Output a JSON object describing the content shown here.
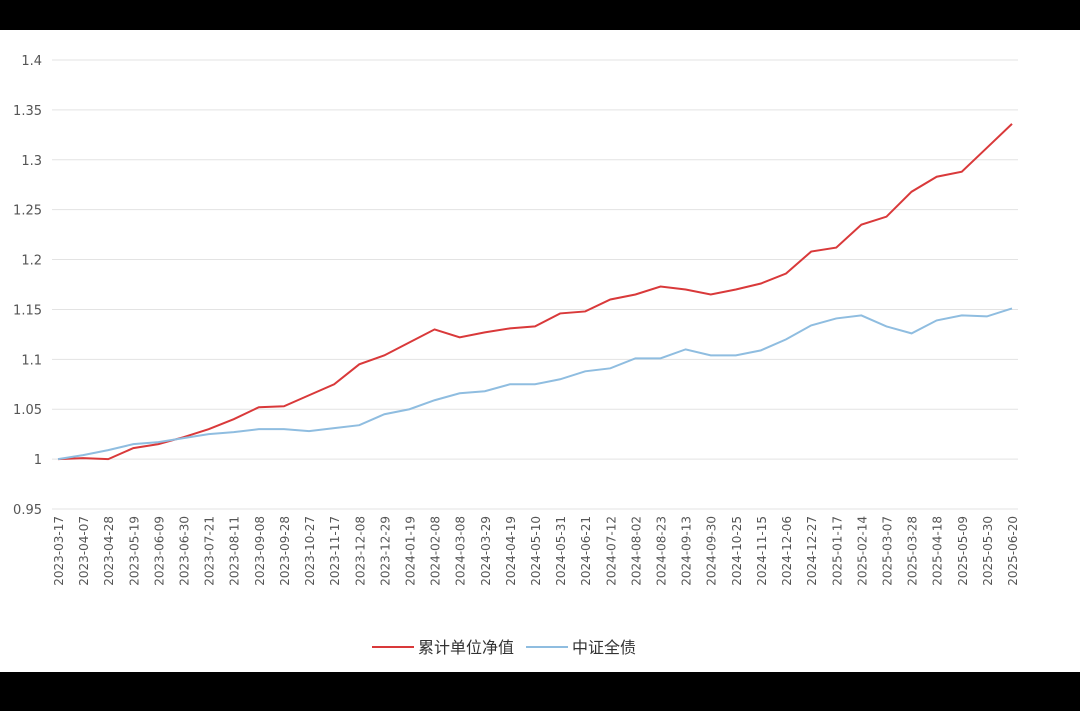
{
  "chart_data": {
    "type": "line",
    "categories": [
      "2023-03-17",
      "2023-04-07",
      "2023-04-28",
      "2023-05-19",
      "2023-06-09",
      "2023-06-30",
      "2023-07-21",
      "2023-08-11",
      "2023-09-08",
      "2023-09-28",
      "2023-10-27",
      "2023-11-17",
      "2023-12-08",
      "2023-12-29",
      "2024-01-19",
      "2024-02-08",
      "2024-03-08",
      "2024-03-29",
      "2024-04-19",
      "2024-05-10",
      "2024-05-31",
      "2024-06-21",
      "2024-07-12",
      "2024-08-02",
      "2024-08-23",
      "2024-09-13",
      "2024-09-30",
      "2024-10-25",
      "2024-11-15",
      "2024-12-06",
      "2024-12-27",
      "2025-01-17",
      "2025-02-14",
      "2025-03-07",
      "2025-03-28",
      "2025-04-18",
      "2025-05-09",
      "2025-05-30",
      "2025-06-20"
    ],
    "series": [
      {
        "name": "累计单位净值",
        "color": "#d9393a",
        "values": [
          1.0,
          1.001,
          1.0,
          1.011,
          1.015,
          1.022,
          1.03,
          1.04,
          1.052,
          1.053,
          1.064,
          1.075,
          1.095,
          1.104,
          1.117,
          1.13,
          1.122,
          1.127,
          1.131,
          1.133,
          1.146,
          1.148,
          1.16,
          1.165,
          1.173,
          1.17,
          1.165,
          1.17,
          1.176,
          1.186,
          1.208,
          1.212,
          1.235,
          1.243,
          1.268,
          1.283,
          1.288,
          1.312,
          1.336
        ]
      },
      {
        "name": "中证全债",
        "color": "#8fbde0",
        "values": [
          1.0,
          1.004,
          1.009,
          1.015,
          1.017,
          1.021,
          1.025,
          1.027,
          1.03,
          1.03,
          1.028,
          1.031,
          1.034,
          1.045,
          1.05,
          1.059,
          1.066,
          1.068,
          1.075,
          1.075,
          1.08,
          1.088,
          1.091,
          1.101,
          1.101,
          1.11,
          1.104,
          1.104,
          1.109,
          1.12,
          1.134,
          1.141,
          1.144,
          1.133,
          1.126,
          1.139,
          1.144,
          1.143,
          1.151
        ]
      }
    ],
    "ylim": [
      0.95,
      1.4
    ],
    "yticks": [
      0.95,
      1,
      1.05,
      1.1,
      1.15,
      1.2,
      1.25,
      1.3,
      1.35,
      1.4
    ],
    "grid": true,
    "legend": "bottom"
  }
}
